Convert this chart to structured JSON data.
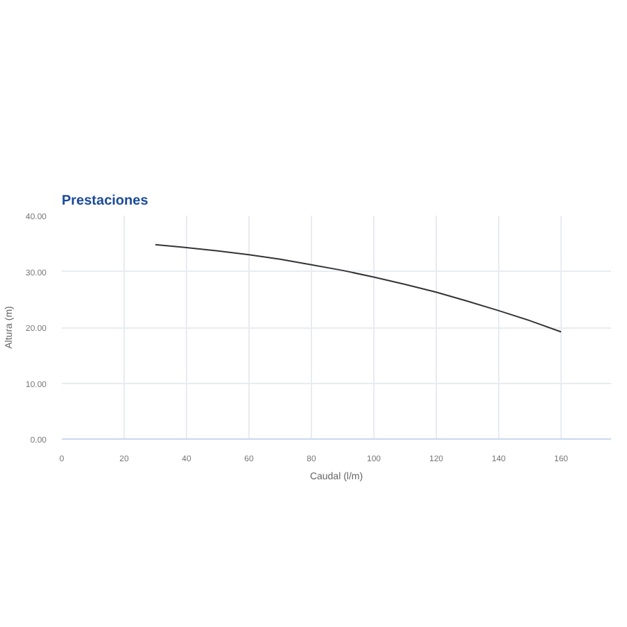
{
  "chart_data": {
    "type": "line",
    "title": "Prestaciones",
    "xlabel": "Caudal (l/m)",
    "ylabel": "Altura (m)",
    "x": [
      30,
      40,
      50,
      60,
      70,
      80,
      90,
      100,
      110,
      120,
      130,
      140,
      150,
      160
    ],
    "series": [
      {
        "color": "#333333",
        "values": [
          34.8,
          34.3,
          33.7,
          33.0,
          32.2,
          31.2,
          30.2,
          29.0,
          27.7,
          26.3,
          24.7,
          23.0,
          21.2,
          19.2
        ]
      }
    ],
    "xlim": [
      0,
      176
    ],
    "ylim": [
      0,
      40
    ],
    "xticks": [
      0,
      20,
      40,
      60,
      80,
      100,
      120,
      140,
      160
    ],
    "yticks": [
      {
        "value": 0,
        "label": "0.00"
      },
      {
        "value": 10,
        "label": "10.00"
      },
      {
        "value": 20,
        "label": "20.00"
      },
      {
        "value": 30,
        "label": "30.00"
      },
      {
        "value": 40,
        "label": "40.00"
      }
    ],
    "grid": true,
    "marker": "none",
    "line_style": "solid"
  }
}
